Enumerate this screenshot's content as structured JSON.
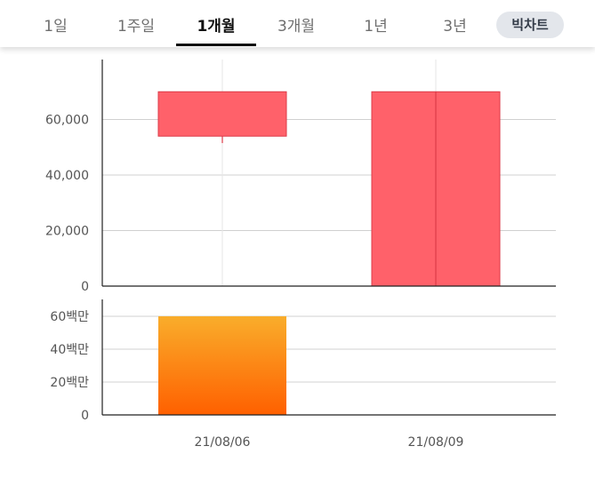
{
  "period_tabs": {
    "items": [
      {
        "label": "1일",
        "active": false
      },
      {
        "label": "1주일",
        "active": false
      },
      {
        "label": "1개월",
        "active": true
      },
      {
        "label": "3개월",
        "active": false
      },
      {
        "label": "1년",
        "active": false
      },
      {
        "label": "3년",
        "active": false
      }
    ],
    "big_chart_label": "빅차트"
  },
  "colors": {
    "candle_up": "#ff616a",
    "candle_up_border": "#dc3b48",
    "volume_top": "#f9ad2b",
    "volume_bottom": "#ff6000",
    "grid": "#d0d0d0",
    "axis": "#222222"
  },
  "chart_data": [
    {
      "type": "candlestick",
      "title": "",
      "xlabel": "",
      "ylabel": "",
      "ylim": [
        0,
        80000
      ],
      "yticks": [
        0,
        20000,
        40000,
        60000
      ],
      "ytick_labels": [
        "0",
        "20,000",
        "40,000",
        "60,000"
      ],
      "grid": true,
      "categories": [
        "21/08/06",
        "21/08/09"
      ],
      "series": [
        {
          "values": [
            {
              "open": 54000,
              "high": 70000,
              "low": 51500,
              "close": 70000
            },
            {
              "open": 0,
              "high": 70000,
              "low": 0,
              "close": 70000
            }
          ]
        }
      ]
    },
    {
      "type": "bar",
      "title": "",
      "xlabel": "",
      "ylabel": "",
      "ylim": [
        0,
        70000000
      ],
      "yticks": [
        0,
        20000000,
        40000000,
        60000000
      ],
      "ytick_labels": [
        "0",
        "20백만",
        "40백만",
        "60백만"
      ],
      "grid": true,
      "categories": [
        "21/08/06",
        "21/08/09"
      ],
      "values": [
        60000000,
        0
      ],
      "xtick_labels": [
        "21/08/06",
        "21/08/09"
      ]
    }
  ]
}
